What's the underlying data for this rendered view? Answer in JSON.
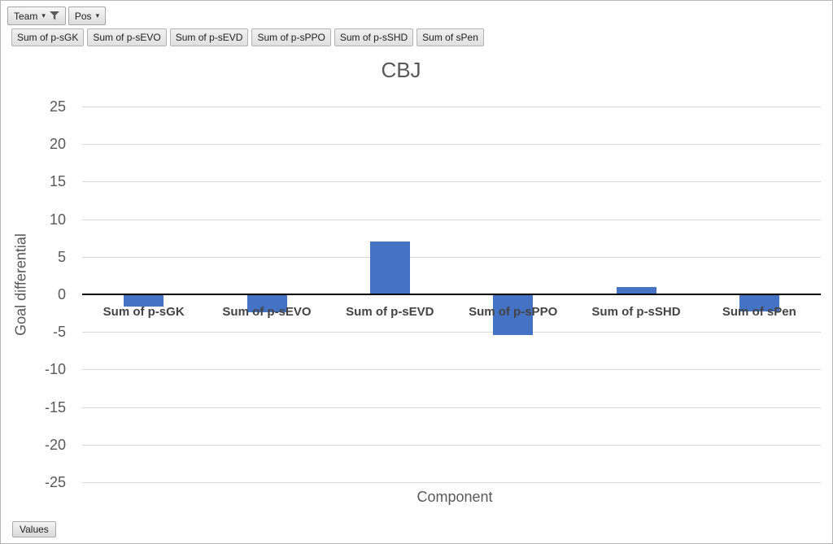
{
  "filter_buttons": {
    "team": "Team",
    "pos": "Pos"
  },
  "field_buttons": [
    "Sum of p-sGK",
    "Sum of p-sEVO",
    "Sum of p-sEVD",
    "Sum of p-sPPO",
    "Sum of p-sSHD",
    "Sum of sPen"
  ],
  "values_button_label": "Values",
  "colors": {
    "bar": "#4472C4",
    "axis_text": "#595959",
    "gridline": "#D9D9D9",
    "zero_line": "#000000"
  },
  "chart_data": {
    "type": "bar",
    "title": "CBJ",
    "categories": [
      "Sum of p-sGK",
      "Sum of p-sEVO",
      "Sum of p-sEVD",
      "Sum of p-sPPO",
      "Sum of p-sSHD",
      "Sum of sPen"
    ],
    "values": [
      -1.6,
      -2.4,
      7.0,
      -5.4,
      1.0,
      -2.3
    ],
    "xlabel": "Component",
    "ylabel": "Goal differential",
    "ylim": [
      -25,
      25
    ],
    "ytick_step": 5,
    "yticks": [
      25,
      20,
      15,
      10,
      5,
      0,
      -5,
      -10,
      -15,
      -20,
      -25
    ],
    "grid": true,
    "legend": "none"
  }
}
